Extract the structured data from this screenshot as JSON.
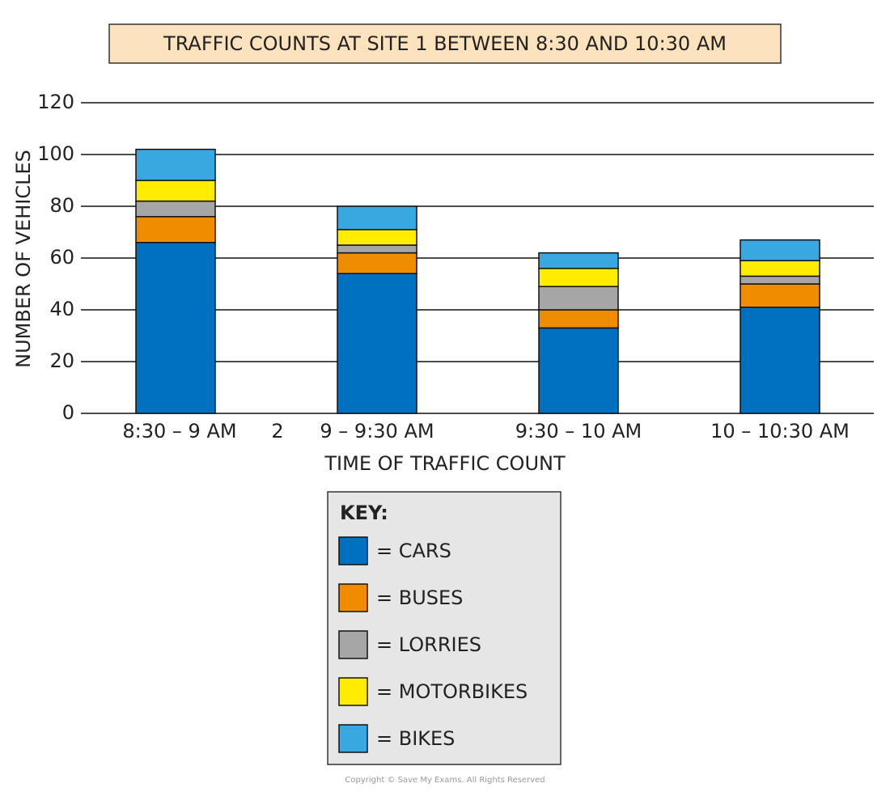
{
  "chart_data": {
    "type": "stacked_bar",
    "title": "TRAFFIC COUNTS AT SITE 1 BETWEEN 8:30 AND 10:30 AM",
    "y_label": "NUMBER OF VEHICLES",
    "x_label": "TIME OF TRAFFIC COUNT",
    "categories": [
      "8:30 – 9 AM",
      "9 – 9:30 AM",
      "9:30 – 10 AM",
      "10 – 10:30 AM"
    ],
    "series": [
      {
        "name": "= CARS",
        "color": "#0070c0",
        "values": [
          66,
          54,
          33,
          41
        ]
      },
      {
        "name": "= BUSES",
        "color": "#f08c00",
        "values": [
          10,
          8,
          7,
          9
        ]
      },
      {
        "name": "= LORRIES",
        "color": "#a6a6a6",
        "values": [
          6,
          3,
          9,
          3
        ]
      },
      {
        "name": "= MOTORBIKES",
        "color": "#ffec00",
        "values": [
          8,
          6,
          7,
          6
        ]
      },
      {
        "name": "= BIKES",
        "color": "#3aa8e0",
        "values": [
          12,
          9,
          6,
          8
        ]
      }
    ],
    "legend_title": "KEY:",
    "annotation": "2",
    "copyright": "Copyright © Save My Exams. All Rights Reserved",
    "ylim": [
      0,
      120
    ],
    "yticks": [
      0,
      20,
      40,
      60,
      80,
      100,
      120
    ],
    "grid": true
  }
}
